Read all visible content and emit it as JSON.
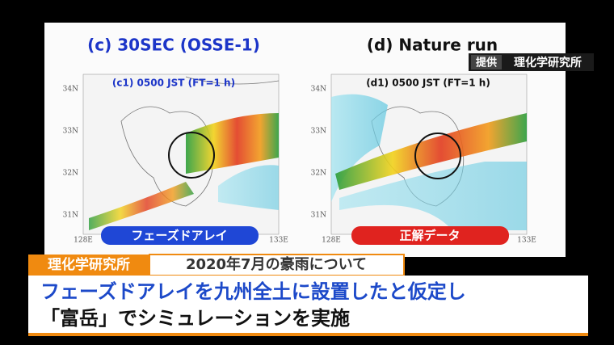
{
  "slide": {
    "panels": [
      {
        "title": "(c) 30SEC (OSSE-1)",
        "subtitle": "(c1) 0500 JST (FT=1 h)",
        "label": "フェーズドアレイ",
        "lat_labels": [
          "34N",
          "33N",
          "32N",
          "31N"
        ],
        "lon_labels": [
          "128E",
          "133E"
        ]
      },
      {
        "title": "(d) Nature run",
        "subtitle": "(d1) 0500 JST (FT=1 h)",
        "label": "正解データ",
        "lat_labels": [
          "34N",
          "33N",
          "32N",
          "31N"
        ],
        "lon_labels": [
          "128E",
          "133E"
        ]
      }
    ]
  },
  "credit": {
    "tag": "提供",
    "name": "理化学研究所"
  },
  "lower_third": {
    "tag": "理化学研究所",
    "topic": "2020年7月の豪雨について",
    "lines": [
      "フェーズドアレイを九州全土に設置したと仮定し",
      "「富岳」でシミュレーションを実施"
    ]
  }
}
